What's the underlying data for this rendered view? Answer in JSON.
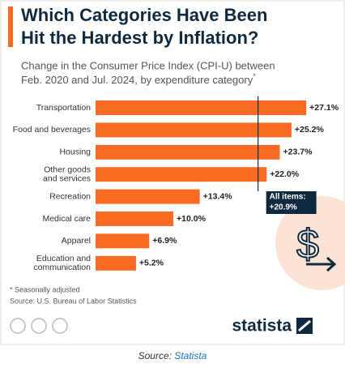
{
  "chart_data": {
    "type": "bar",
    "orientation": "horizontal",
    "title": [
      "Which Categories Have Been",
      "Hit the Hardest by Inflation?"
    ],
    "subtitle": [
      "Change in the Consumer Price Index (CPI-U) between",
      "Feb. 2020 and Jul. 2024, by expenditure category"
    ],
    "subtitle_mark": "*",
    "categories": [
      [
        "Transportation"
      ],
      [
        "Food and beverages"
      ],
      [
        "Housing"
      ],
      [
        "Other goods",
        "and services"
      ],
      [
        "Recreation"
      ],
      [
        "Medical care"
      ],
      [
        "Apparel"
      ],
      [
        "Education and",
        "communication"
      ]
    ],
    "values": [
      27.1,
      25.2,
      23.7,
      22.0,
      13.4,
      10.0,
      6.9,
      5.2
    ],
    "value_labels": [
      "+27.1%",
      "+25.2%",
      "+23.7%",
      "+22.0%",
      "+13.4%",
      "+10.0%",
      "+6.9%",
      "+5.2%"
    ],
    "color": "#f96a22",
    "xlim": [
      0,
      30
    ],
    "reference": {
      "label": "All items:",
      "value": 20.9,
      "value_label": "+20.9%"
    },
    "notes": [
      "* Seasonally adjusted",
      "Source: U.S. Bureau of Labor Statistics"
    ],
    "brand": "statista",
    "caption": {
      "label": "Source:",
      "link": "Statista"
    }
  }
}
